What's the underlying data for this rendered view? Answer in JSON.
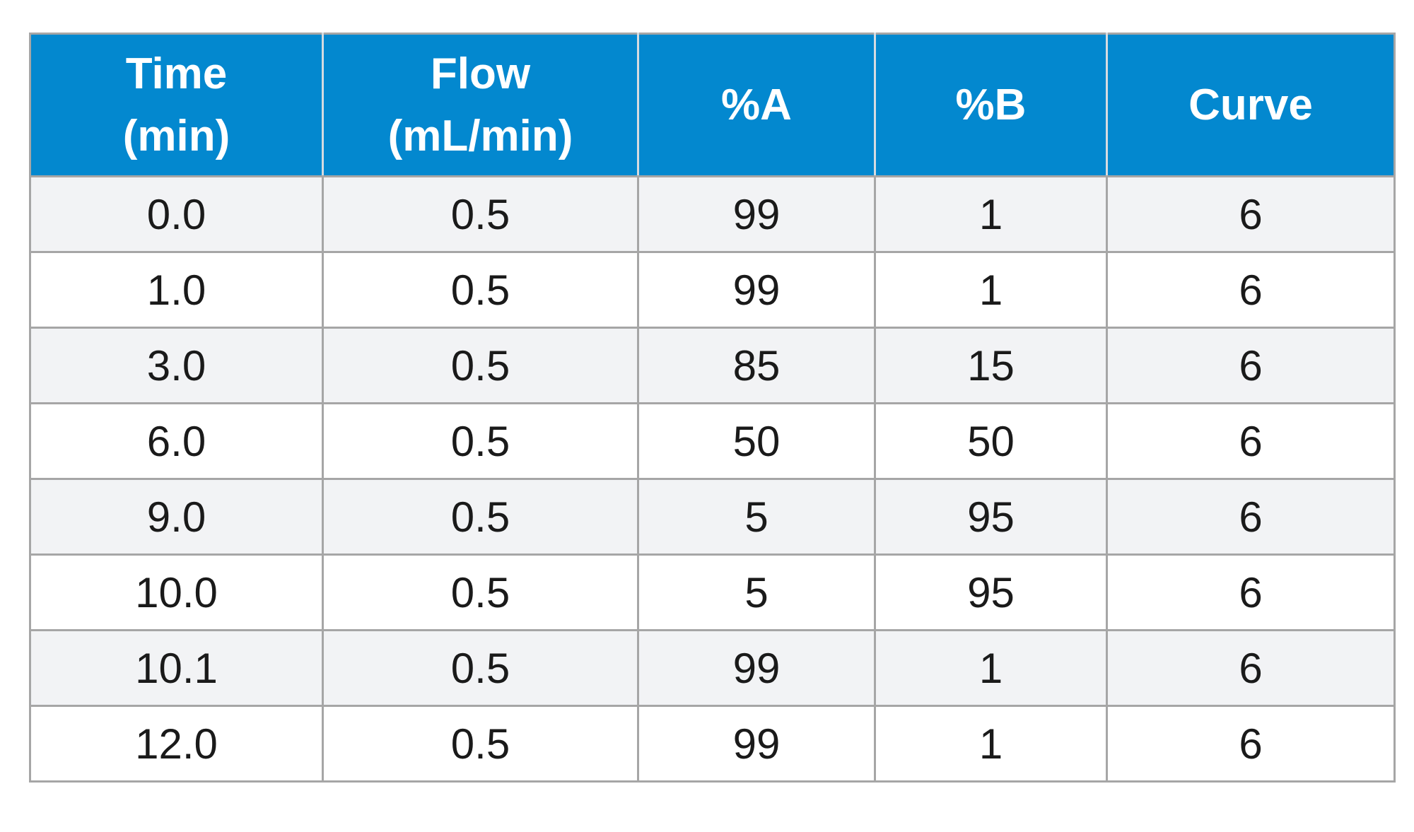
{
  "table": {
    "headers": [
      {
        "lines": [
          "Time",
          "(min)"
        ]
      },
      {
        "lines": [
          "Flow",
          "(mL/min)"
        ]
      },
      {
        "lines": [
          "%A"
        ]
      },
      {
        "lines": [
          "%B"
        ]
      },
      {
        "lines": [
          "Curve"
        ]
      }
    ],
    "rows": [
      [
        "0.0",
        "0.5",
        "99",
        "1",
        "6"
      ],
      [
        "1.0",
        "0.5",
        "99",
        "1",
        "6"
      ],
      [
        "3.0",
        "0.5",
        "85",
        "15",
        "6"
      ],
      [
        "6.0",
        "0.5",
        "50",
        "50",
        "6"
      ],
      [
        "9.0",
        "0.5",
        "5",
        "95",
        "6"
      ],
      [
        "10.0",
        "0.5",
        "5",
        "95",
        "6"
      ],
      [
        "10.1",
        "0.5",
        "99",
        "1",
        "6"
      ],
      [
        "12.0",
        "0.5",
        "99",
        "1",
        "6"
      ]
    ],
    "colors": {
      "header_bg": "#0388cf",
      "header_text": "#ffffff",
      "row_alt_bg": "#f2f3f5",
      "row_bg": "#ffffff",
      "border": "#a6a6a6"
    }
  }
}
